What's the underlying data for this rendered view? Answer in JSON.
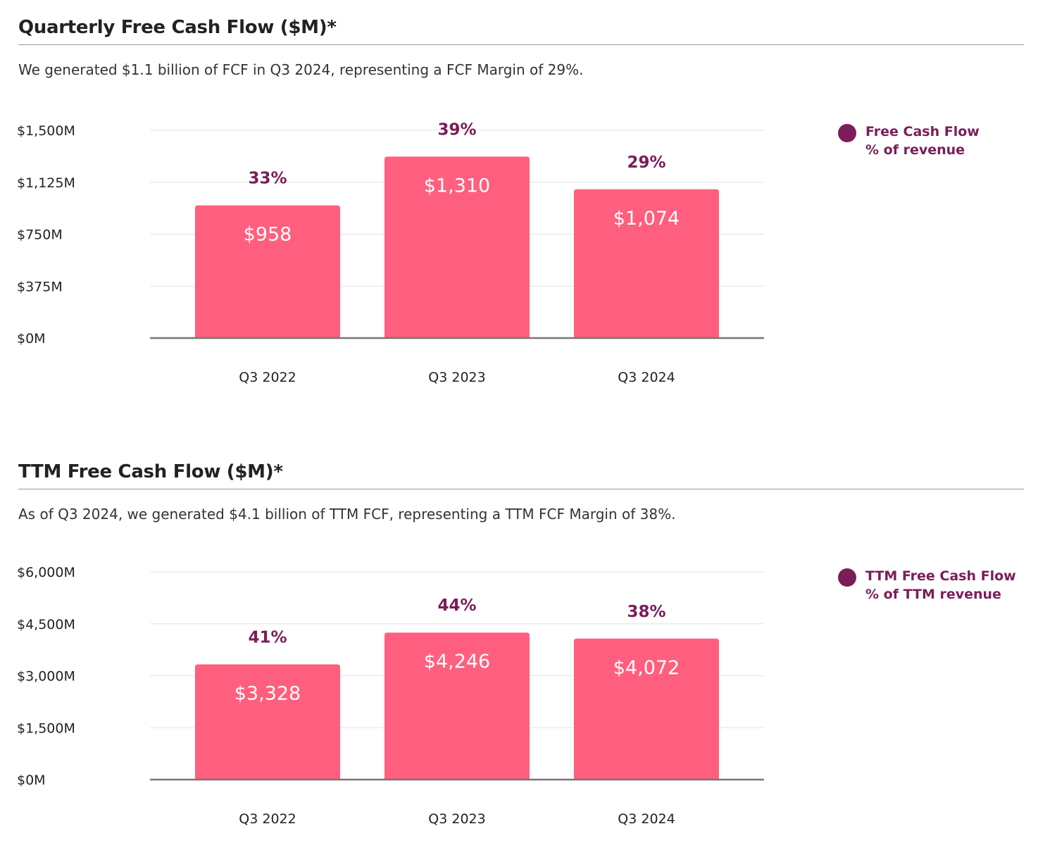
{
  "colors": {
    "bar": "#ff5f7e",
    "accent": "#7b1d5a",
    "axis": "#777777",
    "grid": "#e4e4e4",
    "text": "#222222"
  },
  "chart_data": [
    {
      "type": "bar",
      "title": "Quarterly Free Cash Flow ($M)*",
      "subtitle": "We generated $1.1 billion of FCF in Q3 2024, representing a FCF Margin of 29%.",
      "xlabel": "",
      "ylabel": "",
      "categories": [
        "Q3 2022",
        "Q3 2023",
        "Q3 2024"
      ],
      "series": [
        {
          "name": "Free Cash Flow",
          "values": [
            958,
            1310,
            1074
          ],
          "value_labels": [
            "$958",
            "$1,310",
            "$1,074"
          ]
        },
        {
          "name": "% of revenue",
          "values": [
            33,
            39,
            29
          ],
          "value_labels": [
            "33%",
            "39%",
            "29%"
          ]
        }
      ],
      "ylim": [
        0,
        1500
      ],
      "yticks": [
        0,
        375,
        750,
        1125,
        1500
      ],
      "ytick_labels": [
        "$0M",
        "$375M",
        "$750M",
        "$1,125M",
        "$1,500M"
      ],
      "grid": true,
      "legend": {
        "position": "right",
        "lines": [
          "Free Cash Flow",
          "% of revenue"
        ]
      }
    },
    {
      "type": "bar",
      "title": "TTM Free Cash Flow ($M)*",
      "subtitle": "As of Q3 2024, we generated $4.1 billion of TTM FCF, representing a TTM FCF Margin of 38%.",
      "xlabel": "",
      "ylabel": "",
      "categories": [
        "Q3 2022",
        "Q3 2023",
        "Q3 2024"
      ],
      "series": [
        {
          "name": "TTM Free Cash Flow",
          "values": [
            3328,
            4246,
            4072
          ],
          "value_labels": [
            "$3,328",
            "$4,246",
            "$4,072"
          ]
        },
        {
          "name": "% of TTM revenue",
          "values": [
            41,
            44,
            38
          ],
          "value_labels": [
            "41%",
            "44%",
            "38%"
          ]
        }
      ],
      "ylim": [
        0,
        6000
      ],
      "yticks": [
        0,
        1500,
        3000,
        4500,
        6000
      ],
      "ytick_labels": [
        "$0M",
        "$1,500M",
        "$3,000M",
        "$4,500M",
        "$6,000M"
      ],
      "grid": true,
      "legend": {
        "position": "right",
        "lines": [
          "TTM Free Cash Flow",
          "% of TTM revenue"
        ]
      }
    }
  ]
}
